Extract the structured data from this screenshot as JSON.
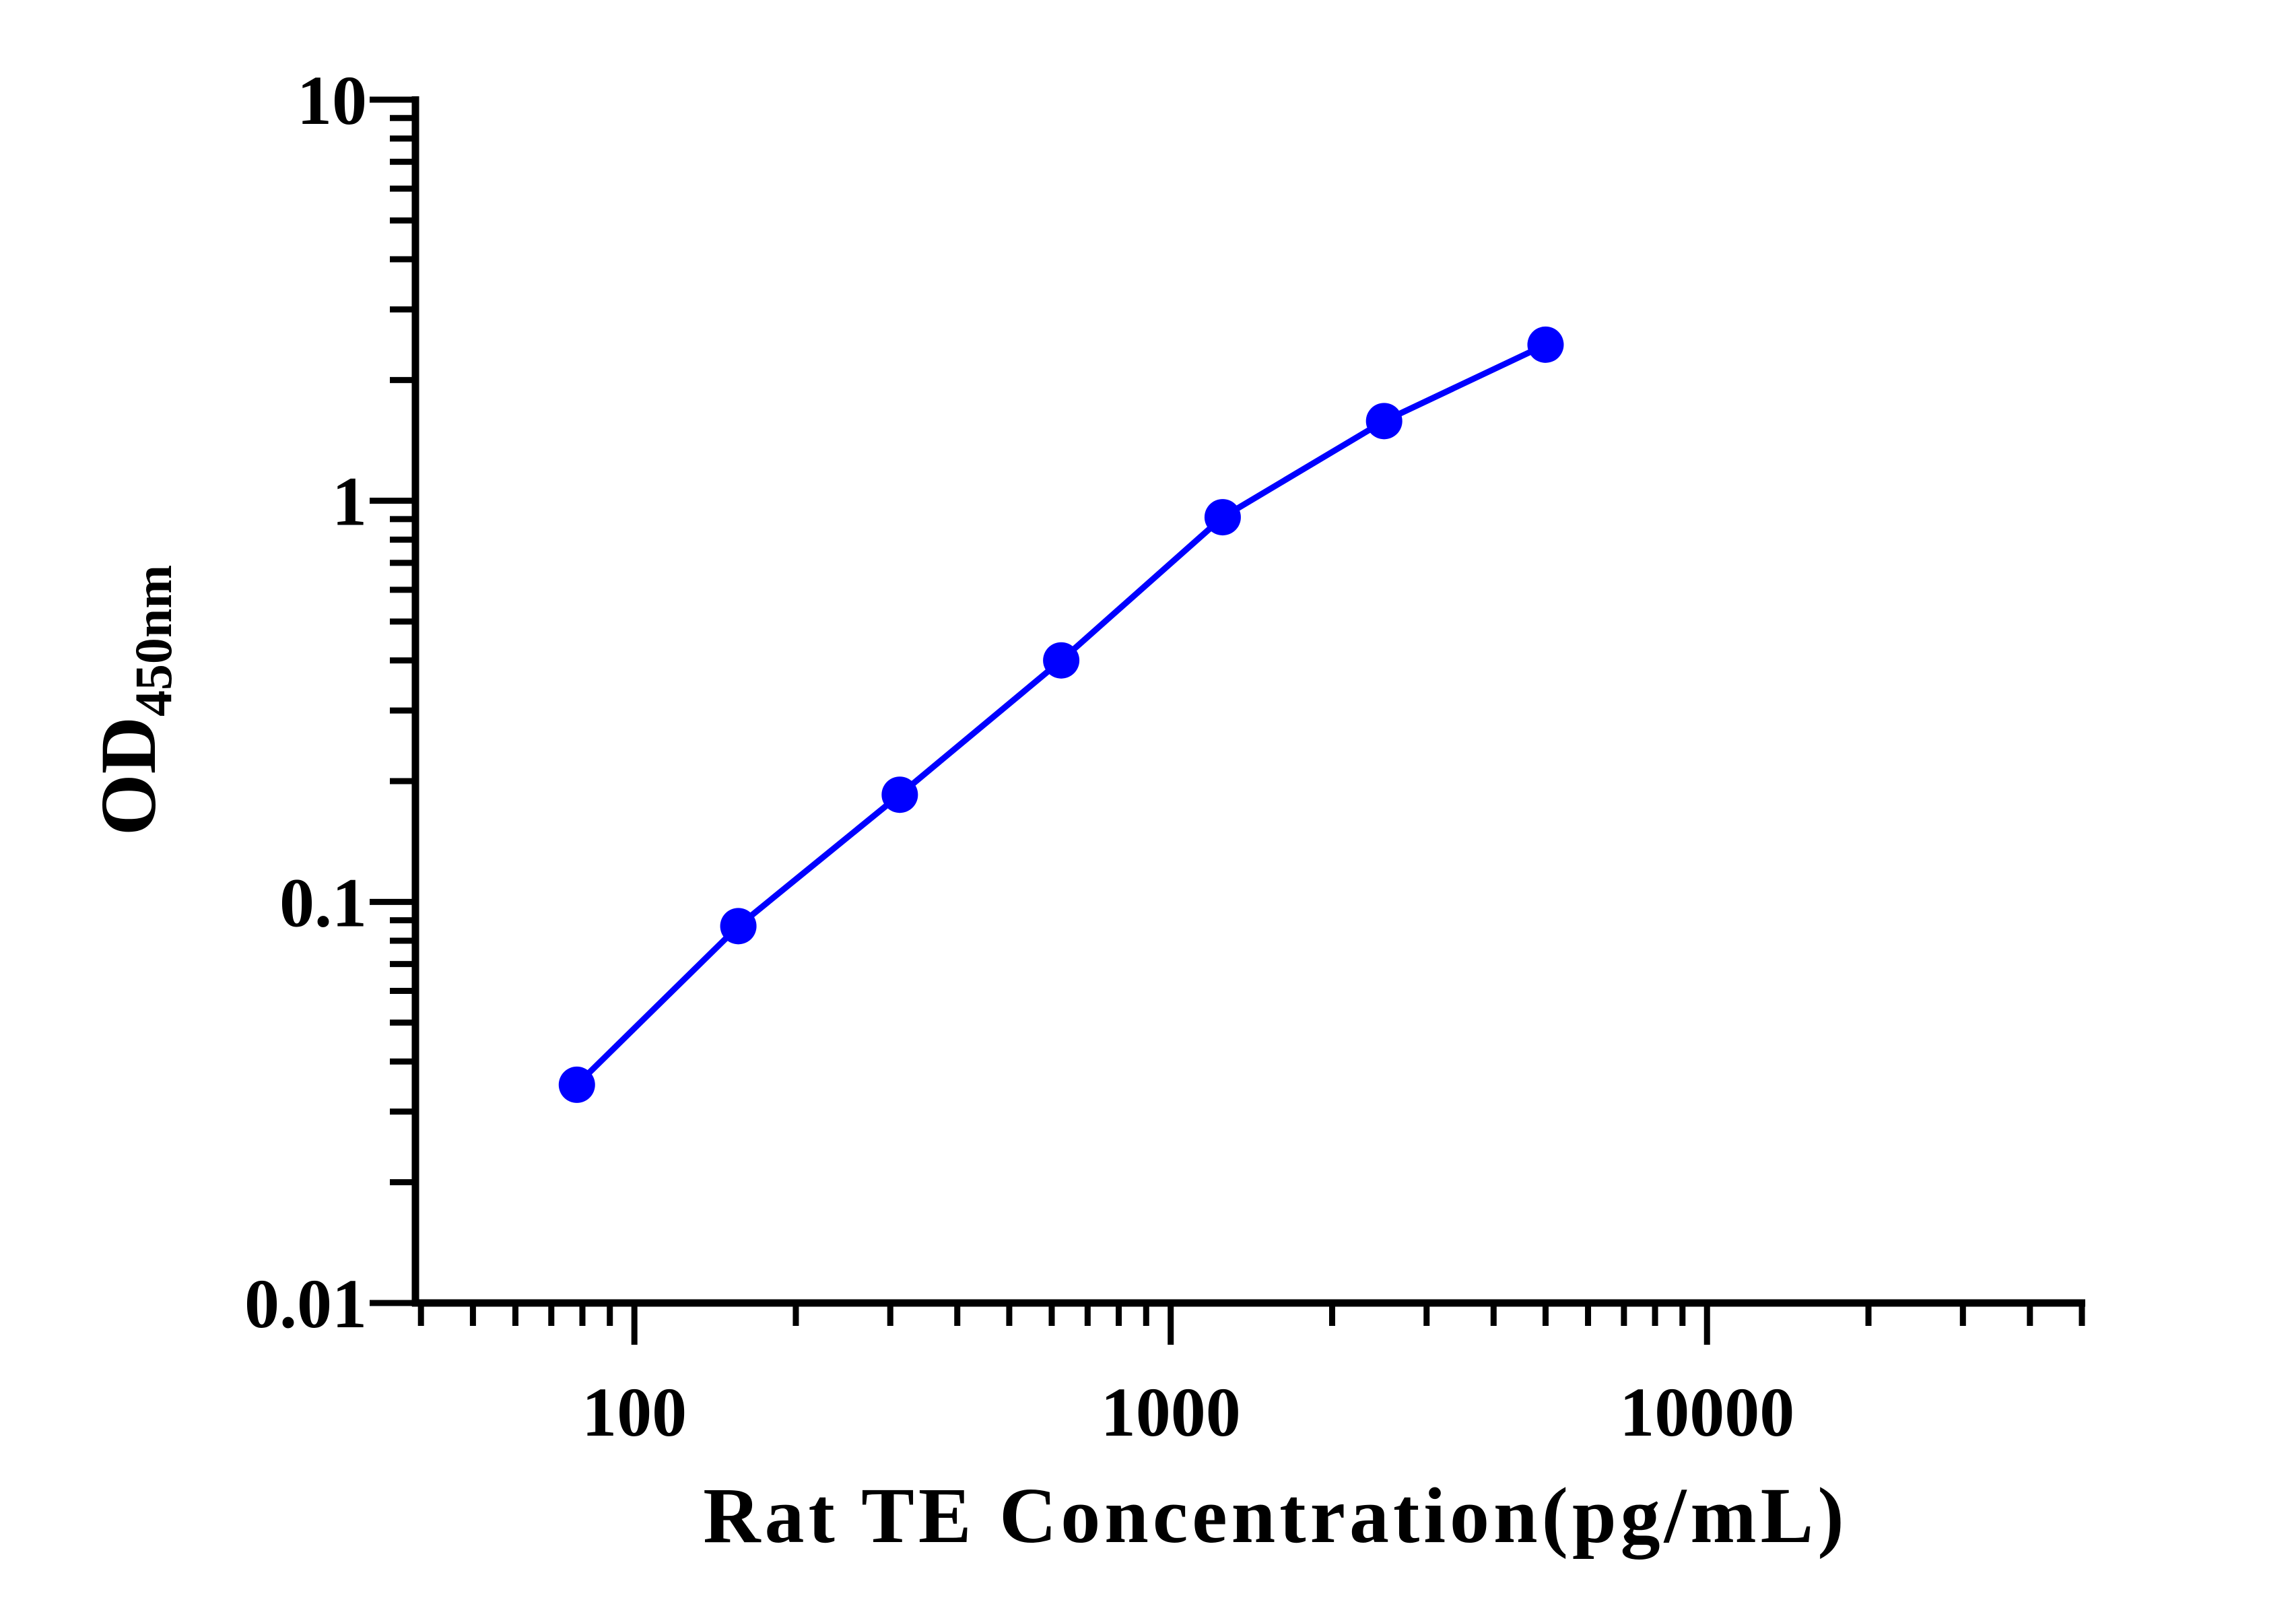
{
  "chart_data": {
    "type": "line",
    "x_scale": "log",
    "y_scale": "log",
    "xlim": [
      39.0625,
      50000
    ],
    "ylim": [
      0.01,
      10
    ],
    "x_ticks": [
      100,
      1000,
      10000
    ],
    "x_tick_labels": [
      "100",
      "1000",
      "10000"
    ],
    "y_ticks": [
      0.01,
      0.1,
      1,
      10
    ],
    "y_tick_labels": [
      "0.01",
      "0.1",
      "1",
      "10"
    ],
    "xlabel": "Rat TE Concentration(pg/mL)",
    "ylabel_main": "OD",
    "ylabel_sub": "450nm",
    "grid": false,
    "legend": "none",
    "series": [
      {
        "color": "#0000ff",
        "x": [
          78.125,
          156.25,
          312.5,
          625,
          1250,
          2500,
          5000
        ],
        "y": [
          0.035,
          0.087,
          0.185,
          0.4,
          0.91,
          1.58,
          2.45
        ]
      }
    ]
  }
}
